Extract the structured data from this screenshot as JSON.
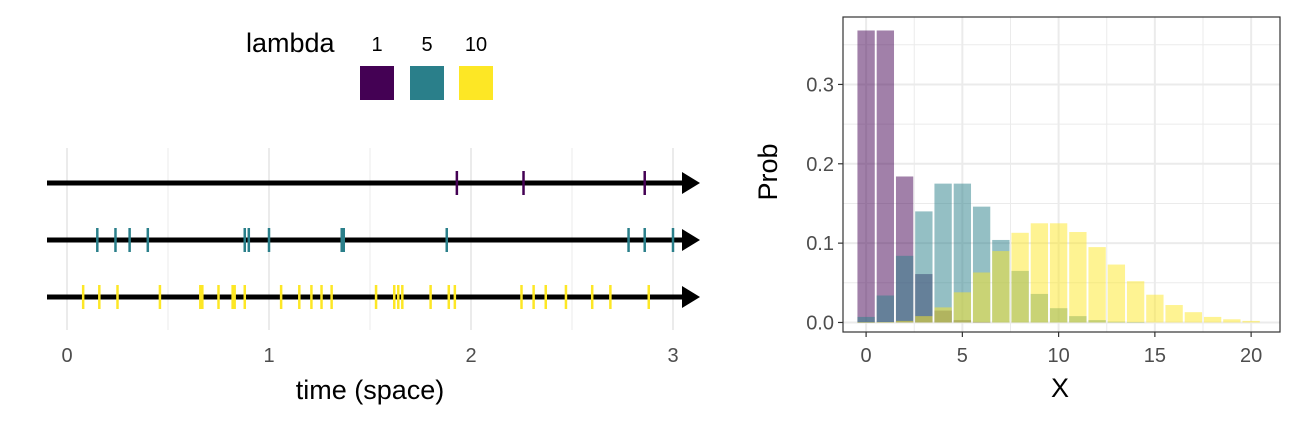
{
  "colors": {
    "lambda_1": "#440154",
    "lambda_5": "#2A7F8A",
    "lambda_10": "#FDE725",
    "grid": "#EBEBEB",
    "line": "#000000"
  },
  "chart_data": [
    {
      "type": "event-timeline",
      "xlabel": "time (space)",
      "xlim": [
        -0.1,
        3.1
      ],
      "xticks": [
        "0",
        "1",
        "2",
        "3"
      ],
      "legend": {
        "title": "lambda",
        "entries": [
          {
            "label": "1",
            "color": "#440154"
          },
          {
            "label": "5",
            "color": "#2A7F8A"
          },
          {
            "label": "10",
            "color": "#FDE725"
          }
        ],
        "placement": "top"
      },
      "series": [
        {
          "name": "1",
          "color": "#440154",
          "events": [
            1.93,
            2.26,
            2.86
          ]
        },
        {
          "name": "5",
          "color": "#2A7F8A",
          "events": [
            0.15,
            0.24,
            0.31,
            0.4,
            0.88,
            0.9,
            1.0,
            1.36,
            1.37,
            1.88,
            2.78,
            2.86,
            3.0
          ]
        },
        {
          "name": "10",
          "color": "#FDE725",
          "events": [
            0.08,
            0.16,
            0.25,
            0.46,
            0.66,
            0.67,
            0.75,
            0.82,
            0.83,
            0.88,
            1.06,
            1.15,
            1.21,
            1.26,
            1.31,
            1.53,
            1.62,
            1.64,
            1.66,
            1.8,
            1.89,
            1.92,
            2.25,
            2.31,
            2.37,
            2.47,
            2.6,
            2.69,
            2.88
          ]
        }
      ]
    },
    {
      "type": "bar",
      "xlabel": "X",
      "ylabel": "Prob",
      "xlim": [
        -1.2,
        21.5
      ],
      "ylim": [
        -0.012,
        0.385
      ],
      "xticks": [
        "0",
        "5",
        "10",
        "15",
        "20"
      ],
      "yticks": [
        "0.0",
        "0.1",
        "0.2",
        "0.3"
      ],
      "categories": [
        0,
        1,
        2,
        3,
        4,
        5,
        6,
        7,
        8,
        9,
        10,
        11,
        12,
        13,
        14,
        15,
        16,
        17,
        18,
        19,
        20
      ],
      "series": [
        {
          "name": "1",
          "color": "#440154",
          "values": [
            0.368,
            0.368,
            0.184,
            0.061,
            0.015,
            0.003,
            0.0005,
            0,
            0,
            0,
            0,
            0,
            0,
            0,
            0,
            0,
            0,
            0,
            0,
            0,
            0
          ]
        },
        {
          "name": "5",
          "color": "#2A7F8A",
          "values": [
            0.007,
            0.034,
            0.084,
            0.14,
            0.175,
            0.175,
            0.146,
            0.104,
            0.065,
            0.036,
            0.018,
            0.008,
            0.003,
            0.001,
            0.0005,
            0,
            0,
            0,
            0,
            0,
            0
          ]
        },
        {
          "name": "10",
          "color": "#FDE725",
          "values": [
            5e-05,
            0.0005,
            0.002,
            0.008,
            0.019,
            0.038,
            0.063,
            0.09,
            0.113,
            0.125,
            0.125,
            0.114,
            0.095,
            0.073,
            0.052,
            0.035,
            0.022,
            0.013,
            0.007,
            0.004,
            0.002
          ]
        }
      ]
    }
  ]
}
